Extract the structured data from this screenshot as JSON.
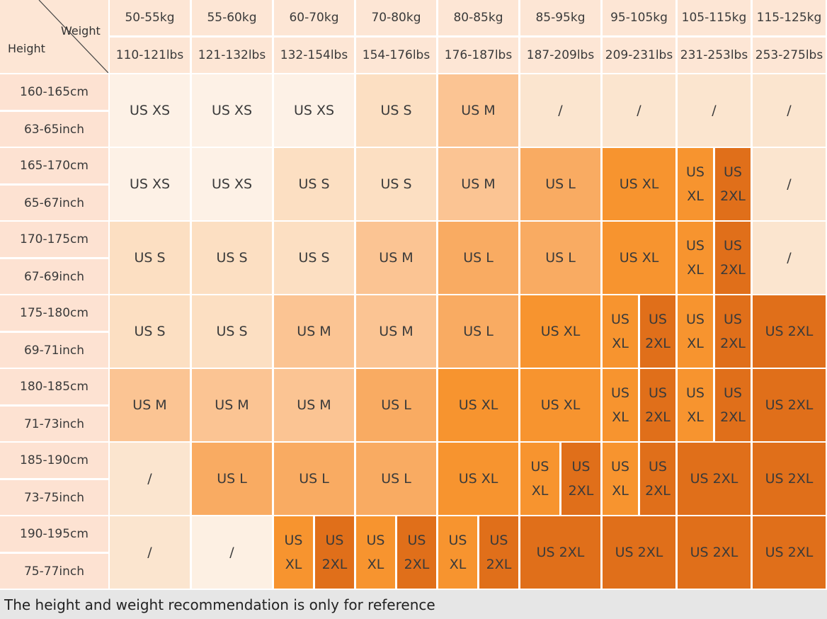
{
  "header": {
    "weight_label": "Weight",
    "height_label": "Height"
  },
  "columns": [
    {
      "kg": "50-55kg",
      "lbs": "110-121lbs"
    },
    {
      "kg": "55-60kg",
      "lbs": "121-132lbs"
    },
    {
      "kg": "60-70kg",
      "lbs": "132-154lbs"
    },
    {
      "kg": "70-80kg",
      "lbs": "154-176lbs"
    },
    {
      "kg": "80-85kg",
      "lbs": "176-187lbs"
    },
    {
      "kg": "85-95kg",
      "lbs": "187-209lbs"
    },
    {
      "kg": "95-105kg",
      "lbs": "209-231lbs"
    },
    {
      "kg": "105-115kg",
      "lbs": "231-253lbs"
    },
    {
      "kg": "115-125kg",
      "lbs": "253-275lbs"
    }
  ],
  "rows": [
    {
      "cm": "160-165cm",
      "inch": "63-65inch",
      "cells": [
        [
          {
            "text": "US XS",
            "color": "#fdf1e6"
          }
        ],
        [
          {
            "text": "US XS",
            "color": "#fdf1e6"
          }
        ],
        [
          {
            "text": "US XS",
            "color": "#fdf1e6"
          }
        ],
        [
          {
            "text": "US S",
            "color": "#fcdfc2"
          }
        ],
        [
          {
            "text": "US M",
            "color": "#fbc493"
          }
        ],
        [
          {
            "text": "/",
            "color": "#fbe5cf"
          }
        ],
        [
          {
            "text": "/",
            "color": "#fbe5cf"
          }
        ],
        [
          {
            "text": "/",
            "color": "#fbe5cf"
          }
        ],
        [
          {
            "text": "/",
            "color": "#fbe5cf"
          }
        ]
      ]
    },
    {
      "cm": "165-170cm",
      "inch": "65-67inch",
      "cells": [
        [
          {
            "text": "US XS",
            "color": "#fdf1e6"
          }
        ],
        [
          {
            "text": "US XS",
            "color": "#fdf1e6"
          }
        ],
        [
          {
            "text": "US S",
            "color": "#fcdfc2"
          }
        ],
        [
          {
            "text": "US S",
            "color": "#fcdfc2"
          }
        ],
        [
          {
            "text": "US M",
            "color": "#fbc493"
          }
        ],
        [
          {
            "text": "US L",
            "color": "#f9ab62"
          }
        ],
        [
          {
            "text": "US XL",
            "color": "#f7942f"
          }
        ],
        [
          {
            "text": "US XL",
            "color": "#f7942f"
          },
          {
            "text": "US 2XL",
            "color": "#e06f1a"
          }
        ],
        [
          {
            "text": "/",
            "color": "#fbe5cf"
          }
        ]
      ]
    },
    {
      "cm": "170-175cm",
      "inch": "67-69inch",
      "cells": [
        [
          {
            "text": "US S",
            "color": "#fcdfc2"
          }
        ],
        [
          {
            "text": "US S",
            "color": "#fcdfc2"
          }
        ],
        [
          {
            "text": "US S",
            "color": "#fcdfc2"
          }
        ],
        [
          {
            "text": "US M",
            "color": "#fbc493"
          }
        ],
        [
          {
            "text": "US L",
            "color": "#f9ab62"
          }
        ],
        [
          {
            "text": "US L",
            "color": "#f9ab62"
          }
        ],
        [
          {
            "text": "US XL",
            "color": "#f7942f"
          }
        ],
        [
          {
            "text": "US XL",
            "color": "#f7942f"
          },
          {
            "text": "US 2XL",
            "color": "#e06f1a"
          }
        ],
        [
          {
            "text": "/",
            "color": "#fbe5cf"
          }
        ]
      ]
    },
    {
      "cm": "175-180cm",
      "inch": "69-71inch",
      "cells": [
        [
          {
            "text": "US S",
            "color": "#fcdfc2"
          }
        ],
        [
          {
            "text": "US S",
            "color": "#fcdfc2"
          }
        ],
        [
          {
            "text": "US M",
            "color": "#fbc493"
          }
        ],
        [
          {
            "text": "US M",
            "color": "#fbc493"
          }
        ],
        [
          {
            "text": "US L",
            "color": "#f9ab62"
          }
        ],
        [
          {
            "text": "US XL",
            "color": "#f7942f"
          }
        ],
        [
          {
            "text": "US XL",
            "color": "#f7942f"
          },
          {
            "text": "US 2XL",
            "color": "#e06f1a"
          }
        ],
        [
          {
            "text": "US XL",
            "color": "#f7942f"
          },
          {
            "text": "US 2XL",
            "color": "#e06f1a"
          }
        ],
        [
          {
            "text": "US 2XL",
            "color": "#e06f1a"
          }
        ]
      ]
    },
    {
      "cm": "180-185cm",
      "inch": "71-73inch",
      "cells": [
        [
          {
            "text": "US M",
            "color": "#fbc493"
          }
        ],
        [
          {
            "text": "US M",
            "color": "#fbc493"
          }
        ],
        [
          {
            "text": "US M",
            "color": "#fbc493"
          }
        ],
        [
          {
            "text": "US L",
            "color": "#f9ab62"
          }
        ],
        [
          {
            "text": "US XL",
            "color": "#f7942f"
          }
        ],
        [
          {
            "text": "US XL",
            "color": "#f7942f"
          }
        ],
        [
          {
            "text": "US XL",
            "color": "#f7942f"
          },
          {
            "text": "US 2XL",
            "color": "#e06f1a"
          }
        ],
        [
          {
            "text": "US XL",
            "color": "#f7942f"
          },
          {
            "text": "US 2XL",
            "color": "#e06f1a"
          }
        ],
        [
          {
            "text": "US 2XL",
            "color": "#e06f1a"
          }
        ]
      ]
    },
    {
      "cm": "185-190cm",
      "inch": "73-75inch",
      "cells": [
        [
          {
            "text": "/",
            "color": "#fbe5cf"
          }
        ],
        [
          {
            "text": "US L",
            "color": "#f9ab62"
          }
        ],
        [
          {
            "text": "US L",
            "color": "#f9ab62"
          }
        ],
        [
          {
            "text": "US L",
            "color": "#f9ab62"
          }
        ],
        [
          {
            "text": "US XL",
            "color": "#f7942f"
          }
        ],
        [
          {
            "text": "US XL",
            "color": "#f7942f"
          },
          {
            "text": "US 2XL",
            "color": "#e06f1a"
          }
        ],
        [
          {
            "text": "US XL",
            "color": "#f7942f"
          },
          {
            "text": "US 2XL",
            "color": "#e06f1a"
          }
        ],
        [
          {
            "text": "US 2XL",
            "color": "#e06f1a"
          }
        ],
        [
          {
            "text": "US 2XL",
            "color": "#e06f1a"
          }
        ]
      ]
    },
    {
      "cm": "190-195cm",
      "inch": "75-77inch",
      "cells": [
        [
          {
            "text": "/",
            "color": "#fbe5cf"
          }
        ],
        [
          {
            "text": "/",
            "color": "#fdf0e3"
          }
        ],
        [
          {
            "text": "US XL",
            "color": "#f7942f"
          },
          {
            "text": "US 2XL",
            "color": "#e06f1a"
          }
        ],
        [
          {
            "text": "US XL",
            "color": "#f7942f"
          },
          {
            "text": "US 2XL",
            "color": "#e06f1a"
          }
        ],
        [
          {
            "text": "US XL",
            "color": "#f7942f"
          },
          {
            "text": "US 2XL",
            "color": "#e06f1a"
          }
        ],
        [
          {
            "text": "US 2XL",
            "color": "#e06f1a"
          }
        ],
        [
          {
            "text": "US 2XL",
            "color": "#e06f1a"
          }
        ],
        [
          {
            "text": "US 2XL",
            "color": "#e06f1a"
          }
        ],
        [
          {
            "text": "US 2XL",
            "color": "#e06f1a"
          }
        ]
      ]
    }
  ],
  "footnote": "The height and weight recommendation is only for reference"
}
